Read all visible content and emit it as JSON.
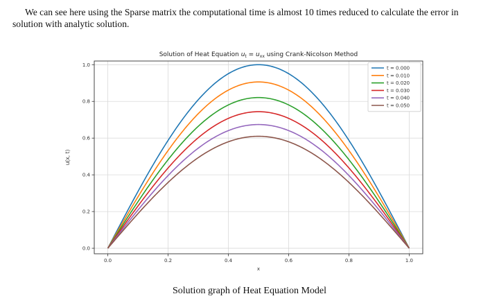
{
  "document": {
    "paragraph": "We can see here using the Sparse matrix the computational time is almost 10 times reduced to calculate the error in solution with analytic solution.",
    "caption": "Solution graph of Heat Equation Model"
  },
  "chart_data": {
    "type": "line",
    "title": "Solution of Heat Equation u_t = u_xx using Crank-Nicolson Method",
    "title_parts": {
      "prefix": "Solution of Heat Equation ",
      "lhs": "u",
      "lhs_sub": "t",
      "eq": " = ",
      "rhs": "u",
      "rhs_sub": "xx",
      "suffix": " using Crank-Nicolson Method"
    },
    "xlabel": "x",
    "ylabel": "u(x, t)",
    "xlim": [
      -0.045,
      1.045
    ],
    "ylim": [
      -0.03,
      1.02
    ],
    "xticks": [
      0.0,
      0.2,
      0.4,
      0.6,
      0.8,
      1.0
    ],
    "xtick_labels": [
      "0.0",
      "0.2",
      "0.4",
      "0.6",
      "0.8",
      "1.0"
    ],
    "yticks": [
      0.0,
      0.2,
      0.4,
      0.6,
      0.8,
      1.0
    ],
    "ytick_labels": [
      "0.0",
      "0.2",
      "0.4",
      "0.6",
      "0.8",
      "1.0"
    ],
    "grid": true,
    "legend_position": "top-right",
    "function": "sin(pi x) scaled per series",
    "x": [
      0.0,
      0.05,
      0.1,
      0.15,
      0.2,
      0.25,
      0.3,
      0.35,
      0.4,
      0.45,
      0.5,
      0.55,
      0.6,
      0.65,
      0.7,
      0.75,
      0.8,
      0.85,
      0.9,
      0.95,
      1.0
    ],
    "series": [
      {
        "name": "t = 0.000",
        "color": "#1f77b4",
        "peak": 1.0
      },
      {
        "name": "t = 0.010",
        "color": "#ff7f0e",
        "peak": 0.906
      },
      {
        "name": "t = 0.020",
        "color": "#2ca02c",
        "peak": 0.821
      },
      {
        "name": "t = 0.030",
        "color": "#d62728",
        "peak": 0.744
      },
      {
        "name": "t = 0.040",
        "color": "#9467bd",
        "peak": 0.674
      },
      {
        "name": "t = 0.050",
        "color": "#8c564b",
        "peak": 0.61
      }
    ]
  }
}
